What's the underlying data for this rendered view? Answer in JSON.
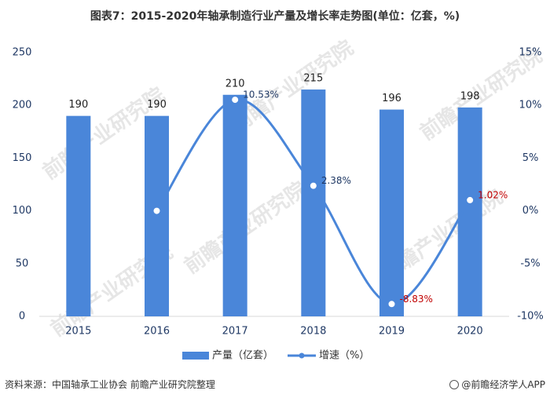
{
  "title": "图表7：2015-2020年轴承制造行业产量及增长率走势图(单位：亿套，%)",
  "source": "资料来源：中国轴承工业协会 前瞻产业研究院整理",
  "brand": "@前瞻经济学人APP",
  "watermark": "前瞻产业研究院",
  "colors": {
    "bar": "#4a86d9",
    "line": "#4a86d9",
    "positive_label": "#1f3864",
    "negative_label": "#c00000",
    "axis_text": "#1f3864"
  },
  "chart_data": {
    "type": "bar",
    "categories": [
      "2015",
      "2016",
      "2017",
      "2018",
      "2019",
      "2020"
    ],
    "series": [
      {
        "name": "产量（亿套）",
        "type": "bar",
        "axis": "left",
        "values": [
          190,
          190,
          210,
          215,
          196,
          198
        ],
        "labels": [
          "190",
          "190",
          "210",
          "215",
          "196",
          "198"
        ]
      },
      {
        "name": "增速（%）",
        "type": "line",
        "axis": "right",
        "values": [
          null,
          0,
          10.53,
          2.38,
          -8.83,
          1.02
        ],
        "labels": [
          "",
          "",
          "10.53%",
          "2.38%",
          "-8.83%",
          "1.02%"
        ]
      }
    ],
    "left_axis": {
      "ylim": [
        0,
        250
      ],
      "ticks": [
        "0",
        "50",
        "100",
        "150",
        "200",
        "250"
      ]
    },
    "right_axis": {
      "ylim": [
        -10,
        15
      ],
      "ticks": [
        "-10%",
        "-5%",
        "0%",
        "5%",
        "10%",
        "15%"
      ]
    },
    "legend_position": "bottom",
    "grid": false
  }
}
